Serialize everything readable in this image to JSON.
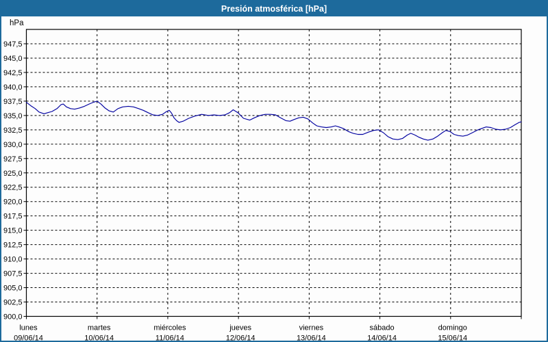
{
  "window": {
    "title": "Presión atmosférica [hPa]"
  },
  "colors": {
    "titlebar": "#1d6a9c",
    "window_border": "#1d6a9c",
    "background": "#fdfdfd",
    "plot_frame": "#000000",
    "grid": "#000000",
    "text": "#000000",
    "title_text": "#ffffff",
    "line": "#0000a0"
  },
  "chart_data": {
    "type": "line",
    "title": "Presión atmosférica [hPa]",
    "grid": "dashed",
    "legend": "none",
    "y_axis": {
      "unit": "hPa",
      "min": 900,
      "max": 950,
      "tick_step": 2.5,
      "ticks": [
        {
          "value": 947.5,
          "label": "947,5"
        },
        {
          "value": 945.0,
          "label": "945,0"
        },
        {
          "value": 942.5,
          "label": "942,5"
        },
        {
          "value": 940.0,
          "label": "940,0"
        },
        {
          "value": 937.5,
          "label": "937,5"
        },
        {
          "value": 935.0,
          "label": "935,0"
        },
        {
          "value": 932.5,
          "label": "932,5"
        },
        {
          "value": 930.0,
          "label": "930,0"
        },
        {
          "value": 927.5,
          "label": "927,5"
        },
        {
          "value": 925.0,
          "label": "925,0"
        },
        {
          "value": 922.5,
          "label": "922,5"
        },
        {
          "value": 920.0,
          "label": "920,0"
        },
        {
          "value": 917.5,
          "label": "917,5"
        },
        {
          "value": 915.0,
          "label": "915,0"
        },
        {
          "value": 912.5,
          "label": "912,5"
        },
        {
          "value": 910.0,
          "label": "910,0"
        },
        {
          "value": 907.5,
          "label": "907,5"
        },
        {
          "value": 905.0,
          "label": "905,0"
        },
        {
          "value": 902.5,
          "label": "902,5"
        },
        {
          "value": 900.0,
          "label": "900,0"
        }
      ]
    },
    "x_axis": {
      "total_hours": 168,
      "days": [
        {
          "name": "lunes",
          "date": "09/06/14"
        },
        {
          "name": "martes",
          "date": "10/06/14"
        },
        {
          "name": "miércoles",
          "date": "11/06/14"
        },
        {
          "name": "jueves",
          "date": "12/06/14"
        },
        {
          "name": "viernes",
          "date": "13/06/14"
        },
        {
          "name": "sábado",
          "date": "14/06/14"
        },
        {
          "name": "domingo",
          "date": "15/06/14"
        }
      ]
    },
    "series": [
      {
        "name": "presion_atmosferica",
        "color": "#0000a0",
        "points": [
          [
            0,
            937.3
          ],
          [
            1.5,
            936.7
          ],
          [
            3,
            936.2
          ],
          [
            4.3,
            935.6
          ],
          [
            6,
            935.3
          ],
          [
            7.3,
            935.5
          ],
          [
            8.7,
            935.7
          ],
          [
            10.4,
            936.2
          ],
          [
            11.8,
            936.9
          ],
          [
            12.5,
            937.0
          ],
          [
            13.6,
            936.5
          ],
          [
            15,
            936.2
          ],
          [
            16.4,
            936.1
          ],
          [
            18,
            936.3
          ],
          [
            19.7,
            936.6
          ],
          [
            21.3,
            937.0
          ],
          [
            22.7,
            937.3
          ],
          [
            24,
            937.5
          ],
          [
            25.3,
            937.0
          ],
          [
            26.7,
            936.3
          ],
          [
            28.1,
            935.8
          ],
          [
            29.5,
            935.6
          ],
          [
            31.1,
            936.2
          ],
          [
            32.7,
            936.5
          ],
          [
            34.6,
            936.6
          ],
          [
            36.4,
            936.5
          ],
          [
            38.1,
            936.2
          ],
          [
            39.7,
            935.9
          ],
          [
            41.3,
            935.5
          ],
          [
            43,
            935.1
          ],
          [
            44.6,
            935.0
          ],
          [
            46.2,
            935.2
          ],
          [
            47.6,
            935.7
          ],
          [
            48.5,
            935.9
          ],
          [
            49.3,
            935.4
          ],
          [
            50.1,
            934.6
          ],
          [
            51,
            934.1
          ],
          [
            51.8,
            933.8
          ],
          [
            53.2,
            934.0
          ],
          [
            55.1,
            934.5
          ],
          [
            57.2,
            934.9
          ],
          [
            59.5,
            935.2
          ],
          [
            61.8,
            935.0
          ],
          [
            63.7,
            935.1
          ],
          [
            65.5,
            935.0
          ],
          [
            67.4,
            935.1
          ],
          [
            69,
            935.5
          ],
          [
            70.2,
            936.0
          ],
          [
            71.8,
            935.5
          ],
          [
            73.7,
            934.5
          ],
          [
            75.8,
            934.2
          ],
          [
            77.4,
            934.6
          ],
          [
            79.3,
            935.0
          ],
          [
            81.1,
            935.2
          ],
          [
            83,
            935.2
          ],
          [
            84.6,
            935.1
          ],
          [
            86.3,
            934.6
          ],
          [
            88.1,
            934.1
          ],
          [
            89.5,
            934.0
          ],
          [
            90.9,
            934.3
          ],
          [
            92.5,
            934.6
          ],
          [
            94,
            934.7
          ],
          [
            95.6,
            934.4
          ],
          [
            97.2,
            933.7
          ],
          [
            98.6,
            933.2
          ],
          [
            100.2,
            933.0
          ],
          [
            101.8,
            932.9
          ],
          [
            103.5,
            933.0
          ],
          [
            104.9,
            933.2
          ],
          [
            106.1,
            933.0
          ],
          [
            107.7,
            932.7
          ],
          [
            109.3,
            932.2
          ],
          [
            110.9,
            931.9
          ],
          [
            112.6,
            931.7
          ],
          [
            114.2,
            931.7
          ],
          [
            116.1,
            932.1
          ],
          [
            117.9,
            932.4
          ],
          [
            119.5,
            932.5
          ],
          [
            121.2,
            932.0
          ],
          [
            122.8,
            931.3
          ],
          [
            124.4,
            930.9
          ],
          [
            126.1,
            930.8
          ],
          [
            127.7,
            931.0
          ],
          [
            129.3,
            931.6
          ],
          [
            130.5,
            931.9
          ],
          [
            131.9,
            931.6
          ],
          [
            133.3,
            931.2
          ],
          [
            134.7,
            930.9
          ],
          [
            136.3,
            930.7
          ],
          [
            138,
            930.9
          ],
          [
            139.6,
            931.4
          ],
          [
            141.2,
            932.0
          ],
          [
            142.4,
            932.4
          ],
          [
            143.8,
            932.2
          ],
          [
            145.2,
            931.7
          ],
          [
            146.6,
            931.5
          ],
          [
            148.2,
            931.4
          ],
          [
            149.8,
            931.6
          ],
          [
            151.4,
            932.0
          ],
          [
            153.3,
            932.5
          ],
          [
            154.9,
            932.8
          ],
          [
            156.1,
            933.0
          ],
          [
            157.7,
            932.9
          ],
          [
            159.4,
            932.6
          ],
          [
            161,
            932.5
          ],
          [
            162.6,
            932.6
          ],
          [
            164.3,
            932.9
          ],
          [
            165.9,
            933.4
          ],
          [
            167.3,
            933.8
          ],
          [
            168,
            933.9
          ]
        ]
      }
    ]
  }
}
